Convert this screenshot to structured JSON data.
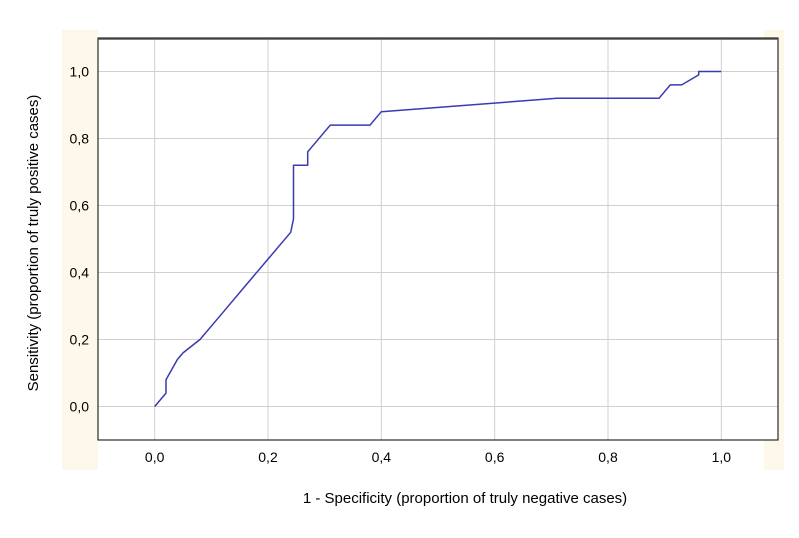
{
  "chart_data": {
    "type": "line",
    "title": "",
    "xlabel": "1 - Specificity (proportion of truly negative cases)",
    "ylabel": "Sensitivity (proportion of truly positive cases)",
    "xlim": [
      -0.1,
      1.1
    ],
    "ylim": [
      -0.1,
      1.1
    ],
    "x_ticks": [
      0.0,
      0.2,
      0.4,
      0.6,
      0.8,
      1.0
    ],
    "y_ticks": [
      0.0,
      0.2,
      0.4,
      0.6,
      0.8,
      1.0
    ],
    "x_tick_labels": [
      "0,0",
      "0,2",
      "0,4",
      "0,6",
      "0,8",
      "1,0"
    ],
    "y_tick_labels": [
      "0,0",
      "0,2",
      "0,4",
      "0,6",
      "0,8",
      "1,0"
    ],
    "grid": true,
    "legend": "none",
    "series": [
      {
        "color": "#3a3ab4",
        "x": [
          0.0,
          0.02,
          0.02,
          0.04,
          0.05,
          0.08,
          0.12,
          0.16,
          0.2,
          0.24,
          0.245,
          0.245,
          0.27,
          0.27,
          0.28,
          0.31,
          0.38,
          0.4,
          0.71,
          0.89,
          0.91,
          0.93,
          0.96,
          0.96,
          1.0
        ],
        "y": [
          0.0,
          0.04,
          0.08,
          0.14,
          0.16,
          0.2,
          0.28,
          0.36,
          0.44,
          0.52,
          0.56,
          0.72,
          0.72,
          0.76,
          0.78,
          0.84,
          0.84,
          0.88,
          0.92,
          0.92,
          0.96,
          0.96,
          0.99,
          1.0,
          1.0
        ]
      }
    ]
  }
}
